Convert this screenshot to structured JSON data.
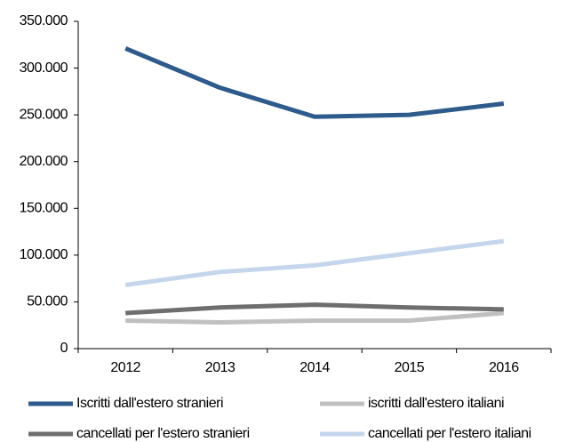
{
  "chart_data": {
    "type": "line",
    "categories": [
      "2012",
      "2013",
      "2014",
      "2015",
      "2016"
    ],
    "series": [
      {
        "name": "Iscritti dall'estero stranieri",
        "color": "#2e5a8c",
        "values": [
          321000,
          279000,
          248000,
          250000,
          262000
        ]
      },
      {
        "name": "iscritti dall'estero italiani",
        "color": "#c0c0c0",
        "values": [
          30000,
          28000,
          30000,
          30000,
          38000
        ]
      },
      {
        "name": "cancellati per l'estero stranieri",
        "color": "#6e6e6e",
        "values": [
          38000,
          44000,
          47000,
          44000,
          42000
        ]
      },
      {
        "name": "cancellati per l'estero italiani",
        "color": "#c5d6ec",
        "values": [
          68000,
          82000,
          89000,
          102000,
          115000
        ]
      }
    ],
    "ylim": [
      0,
      350000
    ],
    "yticks": [
      0,
      {
        "value": 50000,
        "label": "50.000"
      },
      {
        "value": 100000,
        "label": "100.000"
      },
      {
        "value": 150000,
        "label": "150.000"
      },
      {
        "value": 200000,
        "label": "200.000"
      },
      {
        "value": 250000,
        "label": "250.000"
      },
      {
        "value": 300000,
        "label": "300.000"
      },
      {
        "value": 350000,
        "label": "350.000"
      }
    ],
    "grid": false,
    "legend": "bottom"
  }
}
